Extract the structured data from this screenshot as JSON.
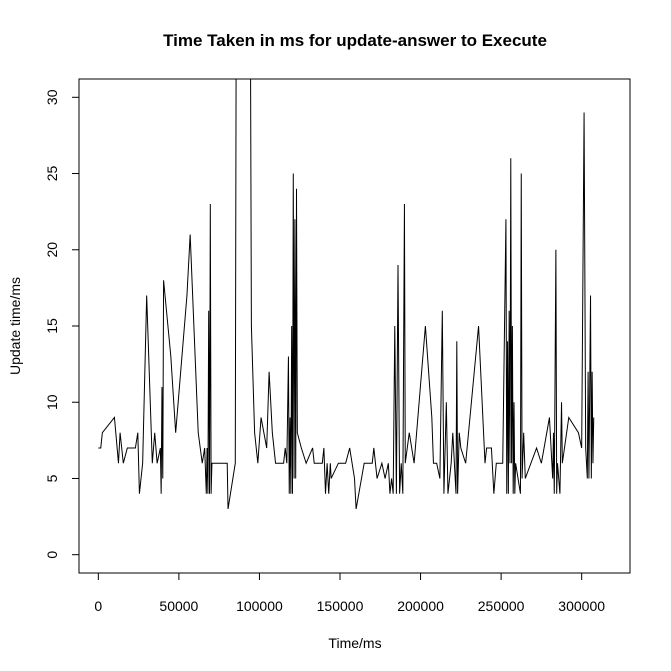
{
  "chart_data": {
    "type": "line",
    "title": "Time Taken in ms for update-answer to Execute",
    "xlabel": "Time/ms",
    "ylabel": "Update time/ms",
    "xlim": [
      -12000,
      330000
    ],
    "ylim": [
      -1.2,
      31.2
    ],
    "x_ticks": [
      0,
      50000,
      100000,
      150000,
      200000,
      250000,
      300000
    ],
    "x_tick_labels": [
      "0",
      "50000",
      "100000",
      "150000",
      "200000",
      "250000",
      "300000"
    ],
    "y_ticks": [
      0,
      5,
      10,
      15,
      20,
      25,
      30
    ],
    "y_tick_labels": [
      "0",
      "5",
      "10",
      "15",
      "20",
      "25",
      "30"
    ],
    "grid": false,
    "series": [
      {
        "color": "#000000",
        "points": [
          [
            0,
            7
          ],
          [
            1500,
            7
          ],
          [
            2500,
            8
          ],
          [
            10000,
            9
          ],
          [
            12500,
            6
          ],
          [
            13500,
            8
          ],
          [
            15500,
            6
          ],
          [
            18000,
            7
          ],
          [
            23000,
            7
          ],
          [
            24500,
            8
          ],
          [
            25500,
            4
          ],
          [
            27500,
            6
          ],
          [
            30000,
            17
          ],
          [
            33500,
            6
          ],
          [
            35000,
            8
          ],
          [
            36500,
            6
          ],
          [
            38500,
            7
          ],
          [
            39000,
            4
          ],
          [
            39500,
            11
          ],
          [
            40000,
            5
          ],
          [
            40500,
            18
          ],
          [
            45000,
            13
          ],
          [
            48000,
            8
          ],
          [
            55000,
            17
          ],
          [
            57000,
            21
          ],
          [
            62000,
            8
          ],
          [
            64500,
            6
          ],
          [
            66000,
            7
          ],
          [
            67000,
            4
          ],
          [
            67500,
            7
          ],
          [
            68000,
            4
          ],
          [
            68500,
            16
          ],
          [
            69000,
            4
          ],
          [
            69500,
            23
          ],
          [
            70000,
            4
          ],
          [
            70500,
            6
          ],
          [
            80000,
            6
          ],
          [
            80500,
            3
          ],
          [
            85000,
            6
          ],
          [
            85500,
            31.5
          ],
          [
            94500,
            31.5
          ],
          [
            95000,
            15
          ],
          [
            97000,
            8
          ],
          [
            99000,
            6
          ],
          [
            101000,
            9
          ],
          [
            104500,
            7
          ],
          [
            106000,
            12
          ],
          [
            108000,
            8
          ],
          [
            110000,
            6
          ],
          [
            115000,
            6
          ],
          [
            116000,
            7
          ],
          [
            117000,
            6
          ],
          [
            118000,
            13
          ],
          [
            118500,
            4
          ],
          [
            119000,
            9
          ],
          [
            119500,
            4
          ],
          [
            120000,
            15
          ],
          [
            120500,
            4
          ],
          [
            121000,
            25
          ],
          [
            121500,
            5
          ],
          [
            122000,
            22
          ],
          [
            122500,
            5
          ],
          [
            123000,
            24
          ],
          [
            123500,
            8
          ],
          [
            126000,
            7
          ],
          [
            129000,
            6
          ],
          [
            133000,
            7
          ],
          [
            134000,
            6
          ],
          [
            139000,
            6
          ],
          [
            140000,
            7
          ],
          [
            141000,
            4
          ],
          [
            142000,
            6
          ],
          [
            143000,
            4
          ],
          [
            144000,
            6
          ],
          [
            144500,
            5
          ],
          [
            149000,
            6
          ],
          [
            153500,
            6
          ],
          [
            156000,
            7
          ],
          [
            159000,
            5
          ],
          [
            160000,
            3
          ],
          [
            165000,
            6
          ],
          [
            170000,
            6
          ],
          [
            171000,
            7
          ],
          [
            173000,
            5
          ],
          [
            176000,
            6
          ],
          [
            178000,
            5
          ],
          [
            180000,
            6
          ],
          [
            181000,
            4
          ],
          [
            182000,
            5
          ],
          [
            183000,
            4
          ],
          [
            184000,
            15
          ],
          [
            185000,
            4
          ],
          [
            186000,
            19
          ],
          [
            187000,
            4
          ],
          [
            188000,
            6
          ],
          [
            189000,
            4
          ],
          [
            190000,
            23
          ],
          [
            190500,
            6
          ],
          [
            193000,
            8
          ],
          [
            196000,
            6
          ],
          [
            203000,
            15
          ],
          [
            207000,
            9
          ],
          [
            208000,
            6
          ],
          [
            210000,
            6
          ],
          [
            212000,
            5
          ],
          [
            213500,
            16
          ],
          [
            214500,
            4
          ],
          [
            216000,
            10
          ],
          [
            217000,
            4
          ],
          [
            219000,
            6
          ],
          [
            220000,
            8
          ],
          [
            222000,
            4
          ],
          [
            222500,
            14
          ],
          [
            223000,
            4
          ],
          [
            224000,
            8
          ],
          [
            225000,
            7
          ],
          [
            228000,
            6
          ],
          [
            236000,
            15
          ],
          [
            240000,
            6
          ],
          [
            241000,
            7
          ],
          [
            244000,
            7
          ],
          [
            245500,
            4
          ],
          [
            247000,
            6
          ],
          [
            251000,
            6
          ],
          [
            253000,
            22
          ],
          [
            253500,
            4
          ],
          [
            254000,
            14
          ],
          [
            254500,
            4
          ],
          [
            255000,
            16
          ],
          [
            255500,
            6
          ],
          [
            256000,
            26
          ],
          [
            256500,
            6
          ],
          [
            257000,
            15
          ],
          [
            257500,
            4
          ],
          [
            258000,
            10
          ],
          [
            258500,
            4
          ],
          [
            259000,
            6
          ],
          [
            262000,
            4
          ],
          [
            262500,
            25
          ],
          [
            263000,
            5
          ],
          [
            264000,
            8
          ],
          [
            265000,
            5
          ],
          [
            272000,
            7
          ],
          [
            275000,
            6
          ],
          [
            280000,
            9
          ],
          [
            282000,
            5
          ],
          [
            282500,
            8
          ],
          [
            283000,
            4
          ],
          [
            284000,
            20
          ],
          [
            284500,
            4
          ],
          [
            285000,
            6
          ],
          [
            286500,
            4
          ],
          [
            287500,
            10
          ],
          [
            288000,
            6
          ],
          [
            292000,
            9
          ],
          [
            298000,
            8
          ],
          [
            300000,
            7
          ],
          [
            301500,
            29
          ],
          [
            302500,
            7
          ],
          [
            303500,
            5
          ],
          [
            304000,
            12
          ],
          [
            304500,
            5
          ],
          [
            305500,
            17
          ],
          [
            306000,
            5
          ],
          [
            306500,
            12
          ],
          [
            307000,
            6
          ],
          [
            307500,
            9
          ]
        ]
      }
    ]
  }
}
